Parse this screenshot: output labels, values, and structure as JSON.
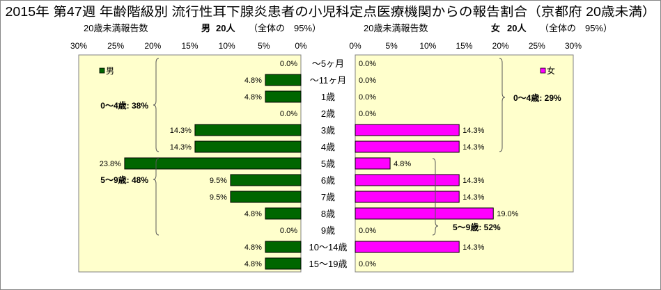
{
  "chart_data": {
    "type": "bar",
    "orientation": "horizontal",
    "title": "2015年 第47週 年齢階級別 流行性耳下腺炎患者の小児科定点医療機関からの報告割合（京都府 20歳未満）",
    "categories": [
      "～5ヶ月",
      "～11ヶ月",
      "1歳",
      "2歳",
      "3歳",
      "4歳",
      "5歳",
      "6歳",
      "7歳",
      "8歳",
      "9歳",
      "10～14歳",
      "15～19歳"
    ],
    "xlim": [
      0,
      30
    ],
    "grid": false,
    "series": [
      {
        "name": "男",
        "color": "#006600",
        "legend": "top-left",
        "values": [
          0.0,
          4.8,
          4.8,
          0.0,
          14.3,
          14.3,
          23.8,
          9.5,
          9.5,
          4.8,
          0.0,
          4.8,
          4.8
        ],
        "labels": [
          "0.0%",
          "4.8%",
          "4.8%",
          "0.0%",
          "14.3%",
          "14.3%",
          "23.8%",
          "9.5%",
          "9.5%",
          "4.8%",
          "0.0%",
          "4.8%",
          "4.8%"
        ],
        "ticks": [
          "30%",
          "25%",
          "20%",
          "15%",
          "10%",
          "5%",
          "0%"
        ],
        "summary": {
          "label": "20歳未満報告数",
          "count": "20人",
          "share": "（全体の　95%）"
        },
        "groups": [
          {
            "text": "0～4歳: 38%",
            "first_category": 0,
            "last_category": 5
          },
          {
            "text": "5～9歳: 48%",
            "first_category": 6,
            "last_category": 10
          }
        ]
      },
      {
        "name": "女",
        "color": "#FF00FF",
        "legend": "top-right",
        "values": [
          0.0,
          0.0,
          0.0,
          0.0,
          14.3,
          14.3,
          4.8,
          14.3,
          14.3,
          19.0,
          0.0,
          14.3,
          0.0
        ],
        "labels": [
          "0.0%",
          "0.0%",
          "0.0%",
          "0.0%",
          "14.3%",
          "14.3%",
          "4.8%",
          "14.3%",
          "14.3%",
          "19.0%",
          "0.0%",
          "14.3%",
          "0.0%"
        ],
        "ticks": [
          "0%",
          "5%",
          "10%",
          "15%",
          "20%",
          "25%",
          "30%"
        ],
        "summary": {
          "label": "20歳未満報告数",
          "count": "20人",
          "share": "（全体の　95%）"
        },
        "groups": [
          {
            "text": "0～4歳: 29%",
            "first_category": 0,
            "last_category": 5
          },
          {
            "text": "5～9歳: 52%",
            "first_category": 6,
            "last_category": 10
          }
        ]
      }
    ],
    "colors": {
      "plot_background": "#FFFFCC",
      "plot_border": "#808080",
      "frame_border": "#868686",
      "bar_outline": "#000000",
      "brace": "#595959"
    }
  }
}
